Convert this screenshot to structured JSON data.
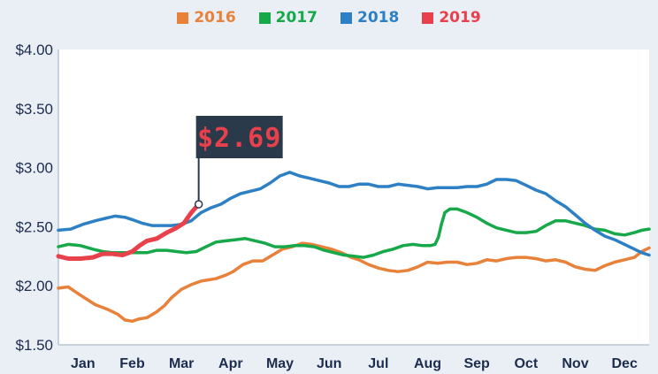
{
  "chart_data": {
    "type": "line",
    "legend": [
      "2016",
      "2017",
      "2018",
      "2019"
    ],
    "legend_position": "top-center",
    "colors": {
      "2016": "#e8813a",
      "2017": "#17a84a",
      "2018": "#2e80c4",
      "2019": "#e8414c"
    },
    "months": [
      "Jan",
      "Feb",
      "Mar",
      "Apr",
      "May",
      "Jun",
      "Jul",
      "Aug",
      "Sep",
      "Oct",
      "Nov",
      "Dec"
    ],
    "y_ticks": [
      "$4.00",
      "$3.50",
      "$3.00",
      "$2.50",
      "$2.00",
      "$1.50"
    ],
    "ylim": [
      1.5,
      4.0
    ],
    "xlim": [
      0,
      12
    ],
    "grid": false,
    "annotation": {
      "label": "$2.69",
      "x": 2.85,
      "y": 2.69
    },
    "series": [
      {
        "name": "2016",
        "points": [
          [
            0,
            1.98
          ],
          [
            0.2,
            1.99
          ],
          [
            0.45,
            1.92
          ],
          [
            0.75,
            1.84
          ],
          [
            1.0,
            1.8
          ],
          [
            1.2,
            1.76
          ],
          [
            1.35,
            1.71
          ],
          [
            1.5,
            1.7
          ],
          [
            1.65,
            1.72
          ],
          [
            1.8,
            1.73
          ],
          [
            2.0,
            1.78
          ],
          [
            2.15,
            1.83
          ],
          [
            2.3,
            1.9
          ],
          [
            2.5,
            1.97
          ],
          [
            2.7,
            2.01
          ],
          [
            2.9,
            2.04
          ],
          [
            3.05,
            2.05
          ],
          [
            3.2,
            2.06
          ],
          [
            3.4,
            2.09
          ],
          [
            3.55,
            2.12
          ],
          [
            3.75,
            2.18
          ],
          [
            3.95,
            2.21
          ],
          [
            4.15,
            2.21
          ],
          [
            4.35,
            2.26
          ],
          [
            4.55,
            2.31
          ],
          [
            4.75,
            2.33
          ],
          [
            4.95,
            2.36
          ],
          [
            5.15,
            2.35
          ],
          [
            5.35,
            2.33
          ],
          [
            5.55,
            2.31
          ],
          [
            5.75,
            2.28
          ],
          [
            5.95,
            2.24
          ],
          [
            6.1,
            2.22
          ],
          [
            6.3,
            2.18
          ],
          [
            6.5,
            2.15
          ],
          [
            6.7,
            2.13
          ],
          [
            6.9,
            2.12
          ],
          [
            7.1,
            2.13
          ],
          [
            7.3,
            2.16
          ],
          [
            7.5,
            2.2
          ],
          [
            7.7,
            2.19
          ],
          [
            7.9,
            2.2
          ],
          [
            8.1,
            2.2
          ],
          [
            8.3,
            2.18
          ],
          [
            8.5,
            2.19
          ],
          [
            8.7,
            2.22
          ],
          [
            8.9,
            2.21
          ],
          [
            9.1,
            2.23
          ],
          [
            9.3,
            2.24
          ],
          [
            9.5,
            2.24
          ],
          [
            9.7,
            2.23
          ],
          [
            9.9,
            2.21
          ],
          [
            10.1,
            2.22
          ],
          [
            10.3,
            2.2
          ],
          [
            10.5,
            2.16
          ],
          [
            10.7,
            2.14
          ],
          [
            10.9,
            2.13
          ],
          [
            11.1,
            2.17
          ],
          [
            11.3,
            2.2
          ],
          [
            11.5,
            2.22
          ],
          [
            11.7,
            2.24
          ],
          [
            11.85,
            2.29
          ],
          [
            12,
            2.32
          ]
        ]
      },
      {
        "name": "2017",
        "points": [
          [
            0,
            2.33
          ],
          [
            0.2,
            2.35
          ],
          [
            0.45,
            2.34
          ],
          [
            0.7,
            2.31
          ],
          [
            0.9,
            2.29
          ],
          [
            1.1,
            2.28
          ],
          [
            1.35,
            2.28
          ],
          [
            1.6,
            2.28
          ],
          [
            1.8,
            2.28
          ],
          [
            2.0,
            2.3
          ],
          [
            2.2,
            2.3
          ],
          [
            2.4,
            2.29
          ],
          [
            2.6,
            2.28
          ],
          [
            2.8,
            2.29
          ],
          [
            3.0,
            2.33
          ],
          [
            3.2,
            2.37
          ],
          [
            3.4,
            2.38
          ],
          [
            3.6,
            2.39
          ],
          [
            3.8,
            2.4
          ],
          [
            4.0,
            2.38
          ],
          [
            4.2,
            2.36
          ],
          [
            4.4,
            2.33
          ],
          [
            4.6,
            2.33
          ],
          [
            4.8,
            2.34
          ],
          [
            5.0,
            2.34
          ],
          [
            5.2,
            2.33
          ],
          [
            5.4,
            2.3
          ],
          [
            5.6,
            2.28
          ],
          [
            5.8,
            2.26
          ],
          [
            6.0,
            2.25
          ],
          [
            6.2,
            2.24
          ],
          [
            6.4,
            2.26
          ],
          [
            6.6,
            2.29
          ],
          [
            6.8,
            2.31
          ],
          [
            7.0,
            2.34
          ],
          [
            7.2,
            2.35
          ],
          [
            7.4,
            2.34
          ],
          [
            7.55,
            2.34
          ],
          [
            7.65,
            2.35
          ],
          [
            7.72,
            2.41
          ],
          [
            7.78,
            2.52
          ],
          [
            7.85,
            2.62
          ],
          [
            7.95,
            2.65
          ],
          [
            8.1,
            2.65
          ],
          [
            8.3,
            2.62
          ],
          [
            8.5,
            2.58
          ],
          [
            8.7,
            2.53
          ],
          [
            8.9,
            2.49
          ],
          [
            9.1,
            2.47
          ],
          [
            9.3,
            2.45
          ],
          [
            9.5,
            2.45
          ],
          [
            9.7,
            2.46
          ],
          [
            9.9,
            2.51
          ],
          [
            10.1,
            2.55
          ],
          [
            10.3,
            2.55
          ],
          [
            10.5,
            2.53
          ],
          [
            10.7,
            2.51
          ],
          [
            10.9,
            2.48
          ],
          [
            11.1,
            2.47
          ],
          [
            11.3,
            2.44
          ],
          [
            11.5,
            2.43
          ],
          [
            11.7,
            2.45
          ],
          [
            11.85,
            2.47
          ],
          [
            12,
            2.48
          ]
        ]
      },
      {
        "name": "2018",
        "points": [
          [
            0,
            2.47
          ],
          [
            0.25,
            2.48
          ],
          [
            0.5,
            2.52
          ],
          [
            0.75,
            2.55
          ],
          [
            0.95,
            2.57
          ],
          [
            1.15,
            2.59
          ],
          [
            1.35,
            2.58
          ],
          [
            1.5,
            2.56
          ],
          [
            1.7,
            2.53
          ],
          [
            1.9,
            2.51
          ],
          [
            2.1,
            2.51
          ],
          [
            2.3,
            2.51
          ],
          [
            2.5,
            2.52
          ],
          [
            2.7,
            2.55
          ],
          [
            2.9,
            2.62
          ],
          [
            3.1,
            2.66
          ],
          [
            3.3,
            2.69
          ],
          [
            3.5,
            2.74
          ],
          [
            3.7,
            2.78
          ],
          [
            3.9,
            2.8
          ],
          [
            4.1,
            2.82
          ],
          [
            4.3,
            2.87
          ],
          [
            4.5,
            2.93
          ],
          [
            4.7,
            2.96
          ],
          [
            4.9,
            2.93
          ],
          [
            5.1,
            2.91
          ],
          [
            5.3,
            2.89
          ],
          [
            5.5,
            2.87
          ],
          [
            5.7,
            2.84
          ],
          [
            5.9,
            2.84
          ],
          [
            6.1,
            2.86
          ],
          [
            6.3,
            2.86
          ],
          [
            6.5,
            2.84
          ],
          [
            6.7,
            2.84
          ],
          [
            6.9,
            2.86
          ],
          [
            7.1,
            2.85
          ],
          [
            7.3,
            2.84
          ],
          [
            7.5,
            2.82
          ],
          [
            7.7,
            2.83
          ],
          [
            7.9,
            2.83
          ],
          [
            8.1,
            2.83
          ],
          [
            8.3,
            2.84
          ],
          [
            8.5,
            2.84
          ],
          [
            8.7,
            2.86
          ],
          [
            8.9,
            2.9
          ],
          [
            9.1,
            2.9
          ],
          [
            9.3,
            2.89
          ],
          [
            9.5,
            2.85
          ],
          [
            9.7,
            2.81
          ],
          [
            9.9,
            2.78
          ],
          [
            10.1,
            2.72
          ],
          [
            10.3,
            2.67
          ],
          [
            10.5,
            2.6
          ],
          [
            10.7,
            2.53
          ],
          [
            10.9,
            2.47
          ],
          [
            11.1,
            2.42
          ],
          [
            11.3,
            2.39
          ],
          [
            11.5,
            2.35
          ],
          [
            11.7,
            2.31
          ],
          [
            11.85,
            2.28
          ],
          [
            12,
            2.26
          ]
        ]
      },
      {
        "name": "2019",
        "points": [
          [
            0,
            2.25
          ],
          [
            0.2,
            2.23
          ],
          [
            0.45,
            2.23
          ],
          [
            0.7,
            2.24
          ],
          [
            0.9,
            2.27
          ],
          [
            1.1,
            2.27
          ],
          [
            1.3,
            2.26
          ],
          [
            1.5,
            2.29
          ],
          [
            1.65,
            2.34
          ],
          [
            1.8,
            2.38
          ],
          [
            2.0,
            2.4
          ],
          [
            2.2,
            2.45
          ],
          [
            2.4,
            2.49
          ],
          [
            2.55,
            2.53
          ],
          [
            2.7,
            2.62
          ],
          [
            2.85,
            2.69
          ]
        ]
      }
    ]
  }
}
